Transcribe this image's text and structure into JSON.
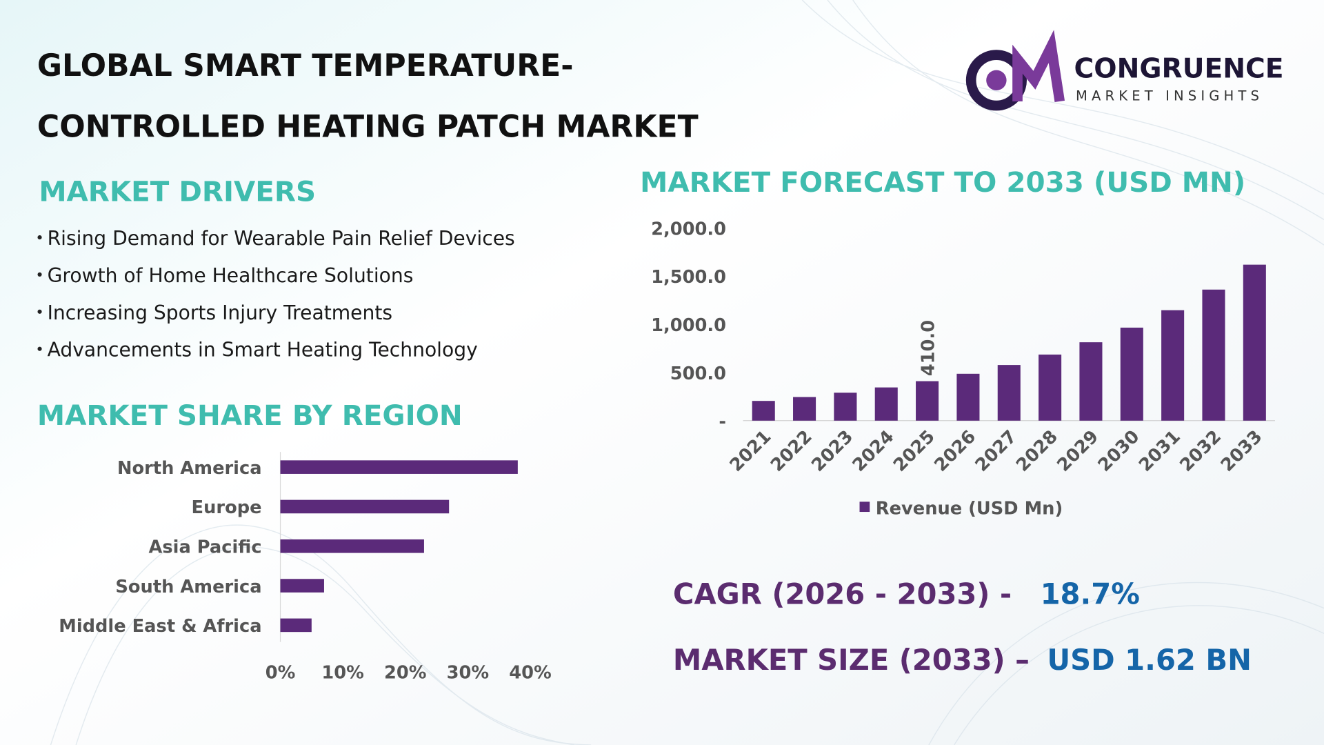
{
  "header": {
    "title_line1": "GLOBAL SMART TEMPERATURE-",
    "title_line2": "CONTROLLED HEATING PATCH MARKET"
  },
  "logo": {
    "name": "CONGRUENCE",
    "tagline": "MARKET INSIGHTS"
  },
  "drivers": {
    "title": "MARKET DRIVERS",
    "items": [
      "Rising Demand for Wearable Pain Relief Devices",
      "Growth of Home Healthcare Solutions",
      "Increasing Sports Injury Treatments",
      "Advancements in Smart Heating Technology"
    ]
  },
  "chart_data": [
    {
      "type": "bar",
      "title": "MARKET FORECAST TO 2033 (USD MN)",
      "categories": [
        "2021",
        "2022",
        "2023",
        "2024",
        "2025",
        "2026",
        "2027",
        "2028",
        "2029",
        "2030",
        "2031",
        "2032",
        "2033"
      ],
      "series": [
        {
          "name": "Revenue (USD Mn)",
          "color": "#5b2a7a",
          "values": [
            205,
            245,
            290,
            345,
            410,
            487,
            578,
            686,
            814,
            966,
            1147,
            1361,
            1620
          ],
          "value_labels": [
            null,
            null,
            null,
            null,
            "410.0",
            null,
            null,
            null,
            null,
            null,
            null,
            null,
            null
          ]
        }
      ],
      "ylim": [
        0,
        2000
      ],
      "yticks": [
        {
          "value": 0,
          "label": "-"
        },
        {
          "value": 500,
          "label": "500.0"
        },
        {
          "value": 1000,
          "label": "1,000.0"
        },
        {
          "value": 1500,
          "label": "1,500.0"
        },
        {
          "value": 2000,
          "label": "2,000.0"
        }
      ],
      "legend": "bottom"
    },
    {
      "type": "barh",
      "title": "MARKET SHARE BY REGION",
      "categories": [
        "North America",
        "Europe",
        "Asia Pacific",
        "South America",
        "Middle East & Africa"
      ],
      "values": [
        38,
        27,
        23,
        7,
        5
      ],
      "color": "#5b2a7a",
      "xlim": [
        0,
        40
      ],
      "xticks": [
        {
          "value": 0,
          "label": "0%"
        },
        {
          "value": 10,
          "label": "10%"
        },
        {
          "value": 20,
          "label": "20%"
        },
        {
          "value": 30,
          "label": "30%"
        },
        {
          "value": 40,
          "label": "40%"
        }
      ]
    }
  ],
  "summary": {
    "cagr_label": "CAGR (2026 - 2033) -",
    "cagr_value": "18.7%",
    "size_label": "MARKET SIZE (2033) –",
    "size_value": "USD 1.62 BN"
  }
}
